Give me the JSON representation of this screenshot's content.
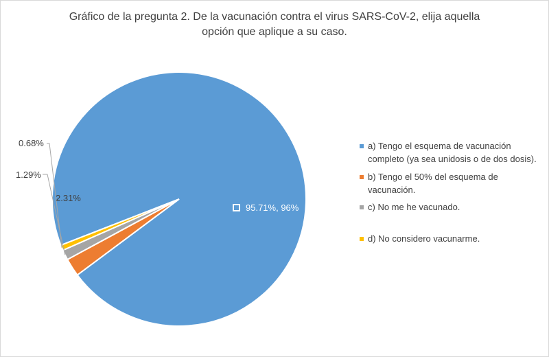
{
  "chart_data": {
    "type": "pie",
    "title_lines": [
      "Gráfico de la pregunta 2. De la vacunación contra el virus SARS-CoV-2, elija aquella",
      "opción que aplique a su caso."
    ],
    "slices": [
      {
        "name_lines": [
          "a) Tengo el esquema de vacunación",
          "completo (ya sea unidosis o de dos dosis)."
        ],
        "value": 95.71,
        "label": "95.71%, 96%",
        "color": "#5B9BD5"
      },
      {
        "name_lines": [
          "b) Tengo el 50% del esquema de",
          "vacunación."
        ],
        "value": 2.31,
        "label": "2.31%",
        "color": "#ED7D31"
      },
      {
        "name_lines": [
          "c) No me he vacunado."
        ],
        "value": 1.29,
        "label": "1.29%",
        "color": "#A5A5A5"
      },
      {
        "name_lines": [
          "d) No considero vacunarme."
        ],
        "value": 0.68,
        "label": "0.68%",
        "color": "#FFC000"
      }
    ],
    "legend_position": "right"
  }
}
